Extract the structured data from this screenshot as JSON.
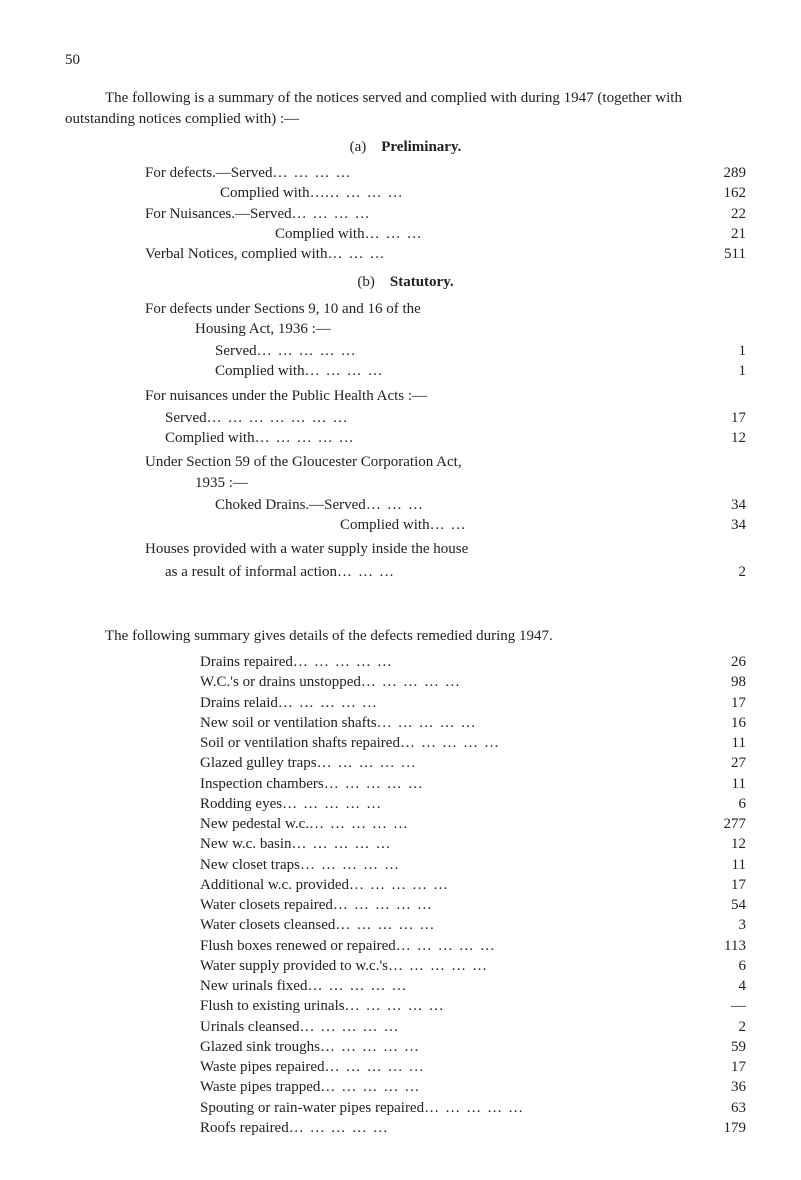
{
  "page_number": "50",
  "intro": "The following is a summary of the notices served and complied with during 1947 (together with outstanding notices complied with) :—",
  "sec_a": {
    "label": "(a)",
    "title": "Preliminary."
  },
  "prelim": {
    "defects_served": {
      "text": "For defects.—Served",
      "val": "289"
    },
    "defects_complied": {
      "text": "Complied with…",
      "val": "162"
    },
    "nuisances_served": {
      "text": "For Nuisances.—Served",
      "val": "22"
    },
    "nuisances_complied": {
      "text": "Complied with",
      "val": "21"
    },
    "verbal": {
      "text": "Verbal Notices, complied with",
      "val": "511"
    }
  },
  "sec_b": {
    "label": "(b)",
    "title": "Statutory."
  },
  "stat": {
    "para1": "For defects under Sections 9, 10 and 16   of   the",
    "para1b": "Housing Act, 1936 :—",
    "served1": {
      "text": "Served",
      "val": "1"
    },
    "complied1": {
      "text": "Complied with",
      "val": "1"
    },
    "para2": "For nuisances under the Public Health Acts :—",
    "served2": {
      "text": "Served",
      "val": "17"
    },
    "complied2": {
      "text": "Complied with",
      "val": "12"
    },
    "para3a": "Under Section 59 of the Gloucester Corporation Act,",
    "para3b": "1935 :—",
    "choked_served": {
      "text": "Choked Drains.—Served",
      "val": "34"
    },
    "choked_complied": {
      "text": "Complied with",
      "val": "34"
    },
    "para4a": "Houses provided with a water supply inside the house",
    "para4b": {
      "text": "as a result of informal action",
      "val": "2"
    }
  },
  "summary_intro": "The following summary gives details of the defects remedied during 1947.",
  "defects": [
    {
      "text": "Drains repaired",
      "val": "26"
    },
    {
      "text": "W.C.'s or drains unstopped",
      "val": "98"
    },
    {
      "text": "Drains relaid",
      "val": "17"
    },
    {
      "text": "New soil or ventilation shafts",
      "val": "16"
    },
    {
      "text": "Soil or ventilation shafts repaired",
      "val": "11"
    },
    {
      "text": "Glazed gulley traps",
      "val": "27"
    },
    {
      "text": "Inspection chambers",
      "val": "11"
    },
    {
      "text": "Rodding eyes",
      "val": "6"
    },
    {
      "text": "New pedestal w.c.",
      "val": "277"
    },
    {
      "text": "New w.c. basin",
      "val": "12"
    },
    {
      "text": "New closet traps",
      "val": "11"
    },
    {
      "text": "Additional w.c. provided",
      "val": "17"
    },
    {
      "text": "Water closets repaired",
      "val": "54"
    },
    {
      "text": "Water closets cleansed",
      "val": "3"
    },
    {
      "text": "Flush boxes renewed or repaired",
      "val": "113"
    },
    {
      "text": "Water supply provided to w.c.'s",
      "val": "6"
    },
    {
      "text": "New urinals fixed",
      "val": "4"
    },
    {
      "text": "Flush to existing urinals",
      "val": "—"
    },
    {
      "text": "Urinals cleansed",
      "val": "2"
    },
    {
      "text": "Glazed sink troughs",
      "val": "59"
    },
    {
      "text": "Waste pipes repaired",
      "val": "17"
    },
    {
      "text": "Waste pipes trapped",
      "val": "36"
    },
    {
      "text": "Spouting or rain-water pipes repaired",
      "val": "63"
    },
    {
      "text": "Roofs repaired",
      "val": "179"
    }
  ]
}
